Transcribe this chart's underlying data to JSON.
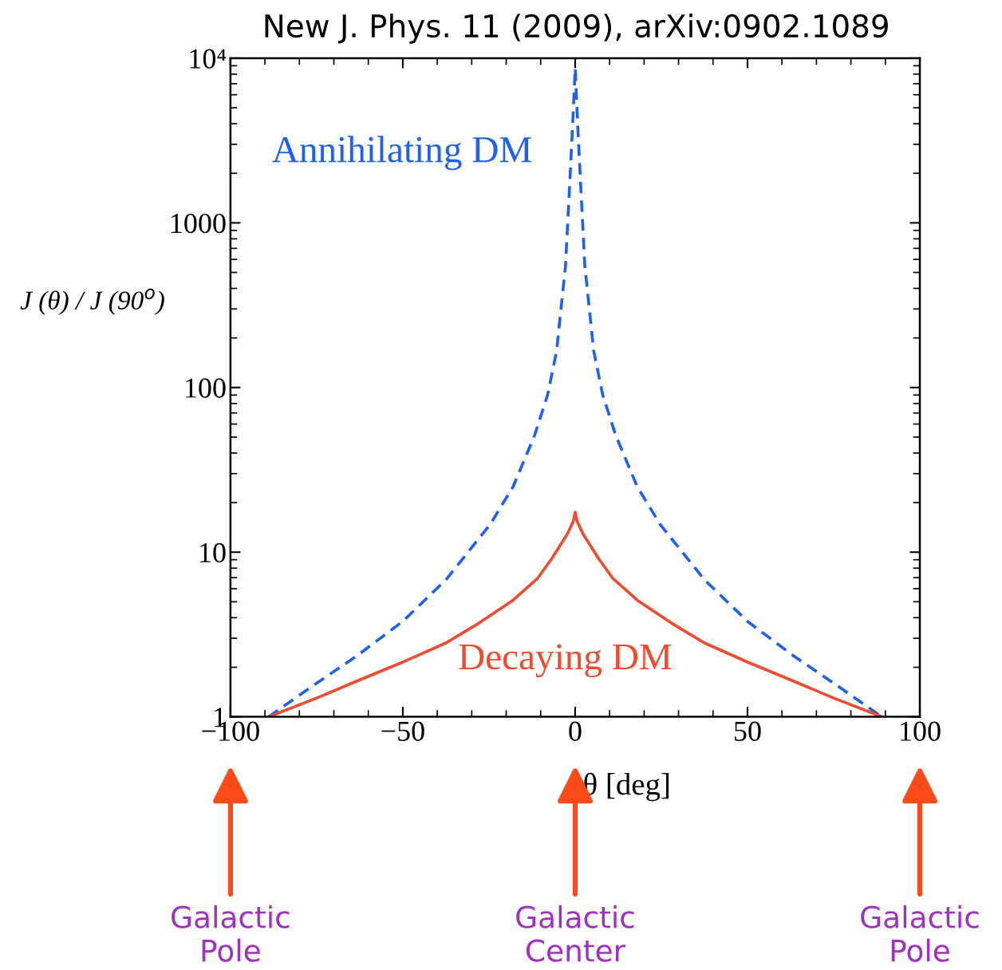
{
  "chart_data": {
    "type": "line",
    "title": "New J. Phys. 11 (2009), arXiv:0902.1089",
    "xlabel": "θ [deg]",
    "ylabel": "J (θ) / J (90$^{o}$)",
    "series": [
      {
        "name": "Annihilating DM",
        "color": "#2060f0",
        "line_style": "dashed",
        "x": [
          -89,
          -75,
          -63.3,
          -50,
          -37.5,
          -24.7,
          -18,
          -11.8,
          -8,
          -5.4,
          -2.8,
          -1.55,
          -0.6,
          0,
          0.6,
          1.55,
          2.8,
          5.4,
          8,
          11.8,
          18,
          24.7,
          37.5,
          50,
          63.3,
          75,
          89
        ],
        "values": [
          1,
          1.6,
          2.35,
          3.8,
          6.8,
          14.7,
          25,
          51,
          90,
          166,
          548,
          1780,
          4500,
          8700,
          4500,
          1780,
          548,
          166,
          90,
          51,
          25,
          14.7,
          6.8,
          3.8,
          2.35,
          1.6,
          1
        ]
      },
      {
        "name": "Decaying DM",
        "color": "#f04a30",
        "line_style": "solid",
        "x": [
          -89,
          -75,
          -63.3,
          -50,
          -37.5,
          -28,
          -18.3,
          -11,
          -6.7,
          -2.2,
          -0.5,
          0,
          0.5,
          2.2,
          6.7,
          11,
          18.3,
          28,
          37.5,
          50,
          63.3,
          75,
          89
        ],
        "values": [
          1,
          1.3,
          1.65,
          2.15,
          2.81,
          3.7,
          5.06,
          6.9,
          9.2,
          13,
          15.5,
          17.5,
          15.5,
          13,
          9.2,
          6.9,
          5.06,
          3.7,
          2.81,
          2.15,
          1.65,
          1.3,
          1
        ]
      }
    ],
    "xlim": [
      -100,
      100
    ],
    "xticks": [
      {
        "value": -100,
        "label": "−100"
      },
      {
        "value": -50,
        "label": "−50"
      },
      0,
      50,
      100
    ],
    "log": "y",
    "ylim": [
      1,
      10000
    ],
    "yticks": [
      1,
      10,
      100,
      1000,
      {
        "value": 10000,
        "label": "10⁴"
      }
    ],
    "grid": false,
    "legend": false,
    "marker": "none",
    "annotations": [
      "Galactic\nPole",
      "Galactic\nCenter",
      "Galactic\nPole"
    ]
  }
}
